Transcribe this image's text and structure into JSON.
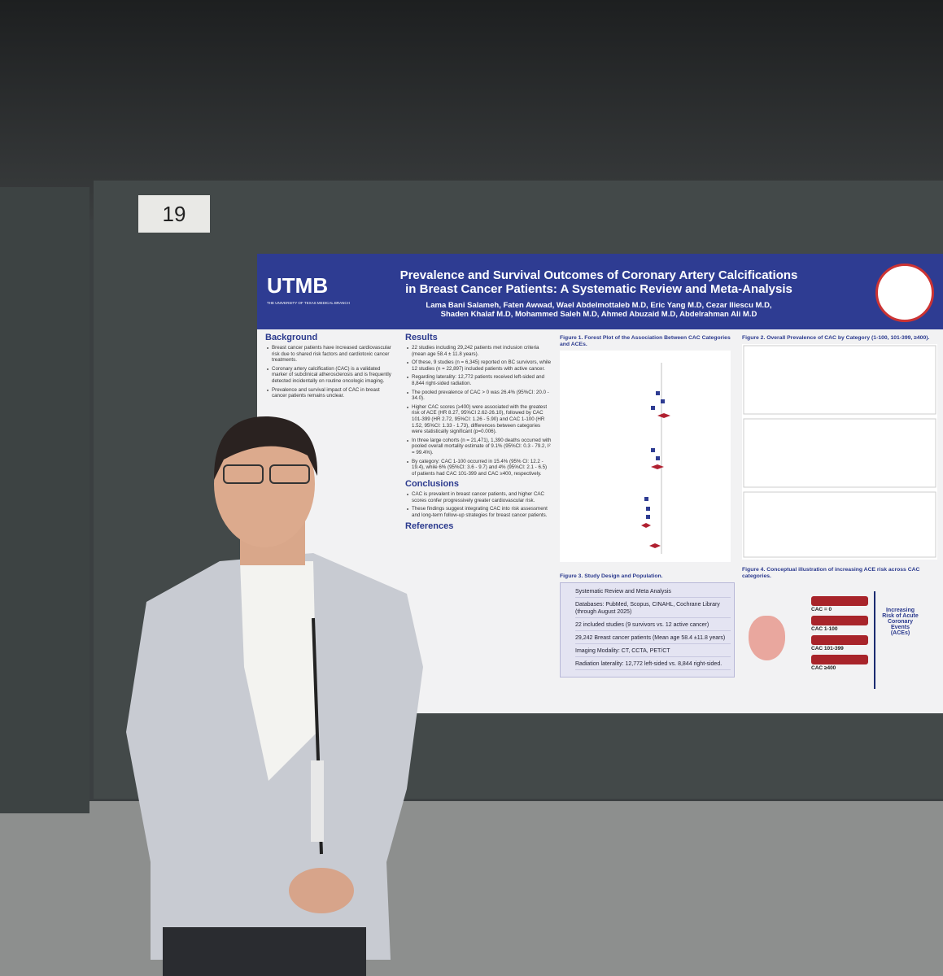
{
  "board_number": "19",
  "poster": {
    "logo": "UTMB",
    "logo_sub": "THE UNIVERSITY OF TEXAS MEDICAL BRANCH",
    "title_lines": [
      "Prevalence and Survival Outcomes of Coronary Artery Calcifications",
      "in Breast Cancer Patients: A Systematic Review and Meta-Analysis"
    ],
    "author_lines": [
      "Lama Bani Salameh, Faten Awwad, Wael Abdelmottaleb M.D, Eric Yang M.D, Cezar Iliescu M.D,",
      "Shaden Khalaf M.D, Mohammed Saleh M.D, Ahmed Abuzaid M.D, Abdelrahman Ali M.D"
    ],
    "background": {
      "heading": "Background",
      "bullets": [
        "Breast cancer patients have increased cardiovascular risk due to shared risk factors and cardiotoxic cancer treatments.",
        "Coronary artery calcification (CAC) is a validated marker of subclinical atherosclerosis and is frequently detected incidentally on routine oncologic imaging.",
        "Prevalence and survival impact of CAC in breast cancer patients remains unclear."
      ]
    },
    "results": {
      "heading": "Results",
      "bullets": [
        "22 studies including 29,242 patients met inclusion criteria (mean age 58.4 ± 11.8 years).",
        "Of these, 9 studies (n = 6,345) reported on BC survivors, while 12 studies (n = 22,897) included patients with active cancer.",
        "Regarding laterality: 12,772 patients received left-sided and 8,844 right-sided radiation.",
        "The pooled prevalence of CAC > 0 was 26.4% (95%CI: 20.0 - 34.0).",
        "Higher CAC scores (≥400) were associated with the greatest risk of ACE (HR 8.27, 95%CI 2.62-26.10), followed by CAC 101-399 (HR 2.72, 95%CI: 1.26 - 5.90) and CAC 1-100 (HR 1.52, 95%CI: 1.33 - 1.73), differences between categories were statistically significant (p=0.006).",
        "In three large cohorts (n = 21,471), 1,390 deaths occurred with pooled overall mortality estimate of 9.1% (95%CI: 0.3 - 79.2, I² = 99.4%).",
        "By category: CAC 1-100 occurred in 15.4% (95% CI: 12.2 - 19.4), while 6% (95%CI: 3.6 - 9.7) and 4% (95%CI: 2.1 - 6.5) of patients had CAC 101-399 and CAC ≥400, respectively."
      ]
    },
    "conclusions": {
      "heading": "Conclusions",
      "bullets": [
        "CAC is prevalent in breast cancer patients, and higher CAC scores confer progressively greater cardiovascular risk.",
        "These findings suggest integrating CAC into risk assessment and long-term follow-up strategies for breast cancer patients."
      ]
    },
    "references": {
      "heading": "References"
    },
    "figure1": {
      "caption": "Figure 1. Forest Plot of the Association Between CAC Categories and ACEs."
    },
    "figure2": {
      "caption": "Figure 2. Overall Prevalence of CAC by Category (1-100, 101-399, ≥400)."
    },
    "figure3": {
      "caption": "Figure 3. Study Design and Population.",
      "items": [
        "Systematic Review and Meta Analysis",
        "Databases: PubMed, Scopus, CINAHL, Cochrane Library (through August 2025)",
        "22 included studies (9 survivors vs. 12 active cancer)",
        "29,242 Breast cancer patients (Mean age 58.4 ±11.8 years)",
        "Imaging Modality: CT, CCTA, PET/CT",
        "Radiation laterality: 12,772 left-sided vs. 8,844 right-sided."
      ]
    },
    "figure4": {
      "caption": "Figure 4. Conceptual illustration of increasing ACE risk across CAC categories.",
      "labels": [
        "CAC = 0",
        "CAC 1-100",
        "CAC 101-399",
        "CAC ≥400"
      ],
      "arrow_text": "Increasing Risk of Acute Coronary Events (ACEs)"
    }
  }
}
